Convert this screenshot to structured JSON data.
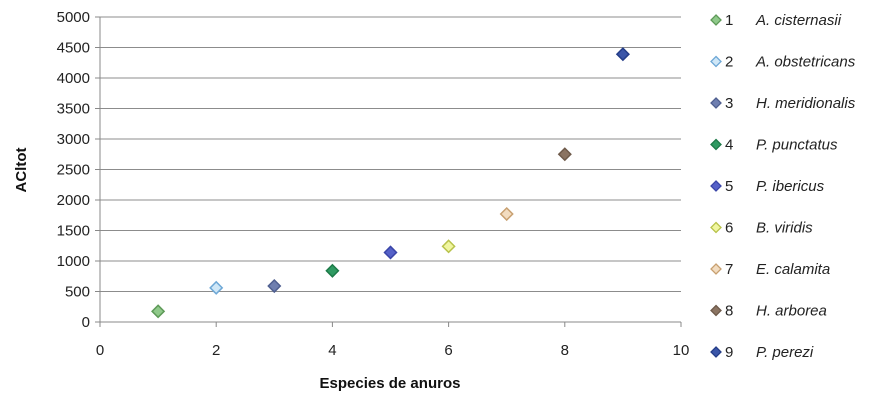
{
  "chart_data": {
    "type": "scatter",
    "xlabel": "Especies de anuros",
    "ylabel": "ACltot",
    "xlim": [
      0,
      10
    ],
    "ylim": [
      0,
      5000
    ],
    "x_ticks": [
      "0",
      "2",
      "4",
      "6",
      "8",
      "10"
    ],
    "y_ticks": [
      "0",
      "500",
      "1000",
      "1500",
      "2000",
      "2500",
      "3000",
      "3500",
      "4000",
      "4500",
      "5000"
    ],
    "grid": "horizontal",
    "legend_position": "right",
    "series": [
      {
        "name": "A. cisternasii",
        "legend_number": "1",
        "x": 1,
        "y": 175,
        "fill": "#8fc98a",
        "stroke": "#5e9a58"
      },
      {
        "name": "A. obstetricans",
        "legend_number": "2",
        "x": 2,
        "y": 560,
        "fill": "#cfe7f7",
        "stroke": "#6ea8d6"
      },
      {
        "name": "H. meridionalis",
        "legend_number": "3",
        "x": 3,
        "y": 590,
        "fill": "#6f7fb0",
        "stroke": "#4f5f90"
      },
      {
        "name": "P. punctatus",
        "legend_number": "4",
        "x": 4,
        "y": 840,
        "fill": "#2f9a62",
        "stroke": "#1d7a48"
      },
      {
        "name": "P. ibericus",
        "legend_number": "5",
        "x": 5,
        "y": 1140,
        "fill": "#5561c8",
        "stroke": "#3a45a8"
      },
      {
        "name": "B. viridis",
        "legend_number": "6",
        "x": 6,
        "y": 1240,
        "fill": "#f0f6a0",
        "stroke": "#b8c24a"
      },
      {
        "name": "E. calamita",
        "legend_number": "7",
        "x": 7,
        "y": 1770,
        "fill": "#f2dcc0",
        "stroke": "#c8a070"
      },
      {
        "name": "H. arborea",
        "legend_number": "8",
        "x": 8,
        "y": 2750,
        "fill": "#8b7462",
        "stroke": "#6e5a4a"
      },
      {
        "name": "P. perezi",
        "legend_number": "9",
        "x": 9,
        "y": 4390,
        "fill": "#3a55a8",
        "stroke": "#243d88"
      }
    ]
  }
}
